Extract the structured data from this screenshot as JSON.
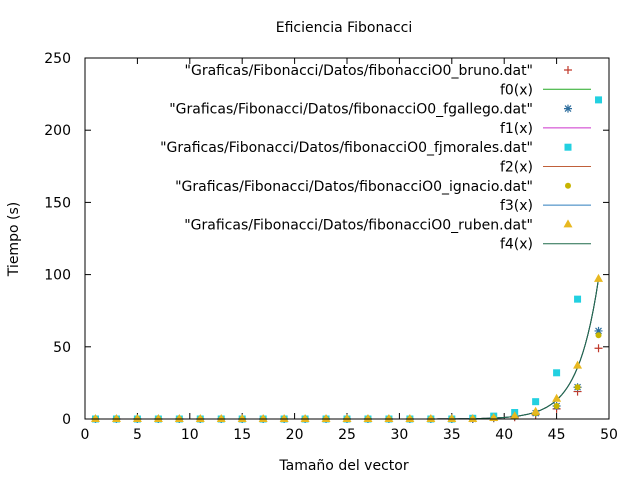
{
  "chart_data": {
    "type": "scatter",
    "title": "Eficiencia Fibonacci",
    "xlabel": "Tamaño del vector",
    "ylabel": "Tiempo (s)",
    "xlim": [
      0,
      50
    ],
    "ylim": [
      0,
      250
    ],
    "xticks": [
      0,
      5,
      10,
      15,
      20,
      25,
      30,
      35,
      40,
      45,
      50
    ],
    "yticks": [
      0,
      50,
      100,
      150,
      200,
      250
    ],
    "grid": false,
    "legend_position": "top-right",
    "x": [
      1,
      3,
      5,
      7,
      9,
      11,
      13,
      15,
      17,
      19,
      21,
      23,
      25,
      27,
      29,
      31,
      33,
      35,
      37,
      39,
      41,
      43,
      45,
      47,
      49
    ],
    "series": [
      {
        "name": "\"Graficas/Fibonacci/Datos/fibonacciO0_bruno.dat\"",
        "kind": "points",
        "marker": "plus",
        "color": "#c0392b",
        "values": [
          0,
          0,
          0,
          0,
          0,
          0,
          0,
          0,
          0,
          0,
          0,
          0,
          0,
          0,
          0,
          0,
          0,
          0,
          0,
          0.5,
          1.2,
          3,
          7,
          19,
          49
        ]
      },
      {
        "name": "f0(x)",
        "kind": "line",
        "color": "#22a822",
        "fit_scale": 97,
        "fit_exponent": 0.5
      },
      {
        "name": "\"Graficas/Fibonacci/Datos/fibonacciO0_fgallego.dat\"",
        "kind": "points",
        "marker": "star",
        "color": "#2e6e9e",
        "values": [
          0,
          0,
          0,
          0,
          0,
          0,
          0,
          0,
          0,
          0,
          0,
          0,
          0,
          0,
          0,
          0,
          0,
          0,
          0,
          0.8,
          2,
          4,
          9,
          22,
          61
        ]
      },
      {
        "name": "f1(x)",
        "kind": "line",
        "color": "#cc33cc",
        "fit_scale": 97,
        "fit_exponent": 0.5
      },
      {
        "name": "\"Graficas/Fibonacci/Datos/fibonacciO0_fjmorales.dat\"",
        "kind": "points",
        "marker": "square",
        "color": "#22d0e0",
        "values": [
          0,
          0,
          0,
          0,
          0,
          0,
          0,
          0,
          0,
          0,
          0,
          0,
          0,
          0,
          0,
          0,
          0,
          0,
          0.5,
          2,
          4.5,
          12,
          32,
          83,
          221
        ]
      },
      {
        "name": "f2(x)",
        "kind": "line",
        "color": "#c0603a",
        "fit_scale": 97,
        "fit_exponent": 0.5
      },
      {
        "name": "\"Graficas/Fibonacci/Datos/fibonacciO0_ignacio.dat\"",
        "kind": "points",
        "marker": "circle",
        "color": "#c8b400",
        "values": [
          0,
          0,
          0,
          0,
          0,
          0,
          0,
          0,
          0,
          0,
          0,
          0,
          0,
          0,
          0,
          0,
          0,
          0,
          0,
          0.5,
          1.5,
          4,
          9,
          22,
          58
        ]
      },
      {
        "name": "f3(x)",
        "kind": "line",
        "color": "#2d7dbd",
        "fit_scale": 97,
        "fit_exponent": 0.5
      },
      {
        "name": "\"Graficas/Fibonacci/Datos/fibonacciO0_ruben.dat\"",
        "kind": "points",
        "marker": "triangle",
        "color": "#e8b820",
        "values": [
          0,
          0,
          0,
          0,
          0,
          0,
          0,
          0,
          0,
          0,
          0,
          0,
          0,
          0,
          0,
          0,
          0,
          0,
          0,
          0.7,
          2,
          5,
          14,
          37,
          97
        ]
      },
      {
        "name": "f4(x)",
        "kind": "line",
        "color": "#1e6a4a",
        "fit_scale": 97,
        "fit_exponent": 0.5
      }
    ]
  }
}
